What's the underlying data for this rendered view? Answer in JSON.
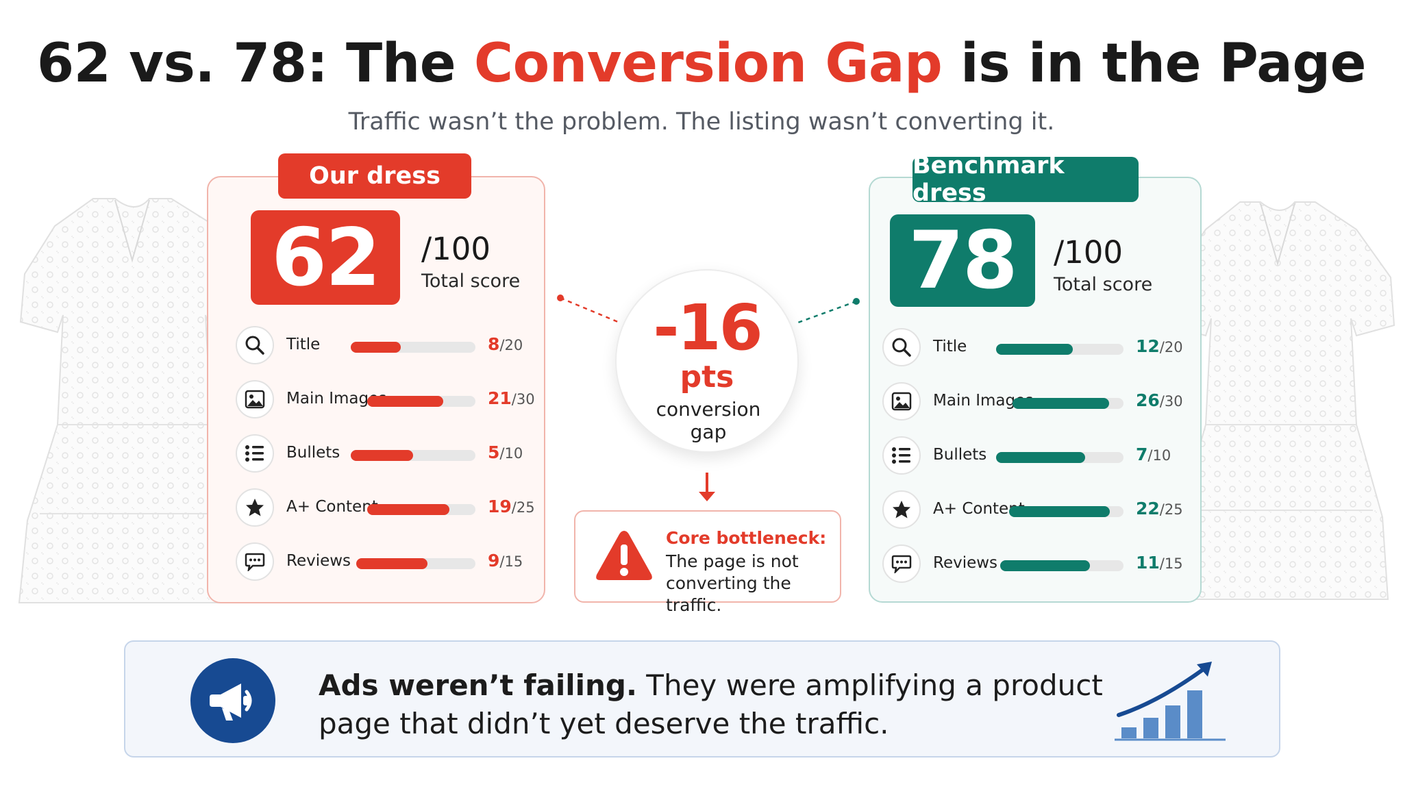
{
  "headline": {
    "prefix": "62 vs. 78: The ",
    "accent": "Conversion Gap",
    "suffix": " is in the Page"
  },
  "subtitle": "Traffic wasn’t the problem. The listing wasn’t converting it.",
  "ours": {
    "tag": "Our dress",
    "score": "62",
    "out_of": "/100",
    "total_label": "Total score",
    "color": "#e33b2a",
    "metrics": [
      {
        "label": "Title",
        "score": "8",
        "max": "/20",
        "fraction": 0.4,
        "icon": "search-icon"
      },
      {
        "label": "Main Images",
        "score": "21",
        "max": "/30",
        "fraction": 0.7,
        "icon": "image-icon"
      },
      {
        "label": "Bullets",
        "score": "5",
        "max": "/10",
        "fraction": 0.5,
        "icon": "list-icon"
      },
      {
        "label": "A+ Content",
        "score": "19",
        "max": "/25",
        "fraction": 0.76,
        "icon": "star-icon"
      },
      {
        "label": "Reviews",
        "score": "9",
        "max": "/15",
        "fraction": 0.6,
        "icon": "chat-icon"
      }
    ]
  },
  "benchmark": {
    "tag": "Benchmark dress",
    "score": "78",
    "out_of": "/100",
    "total_label": "Total score",
    "color": "#0f7c6b",
    "metrics": [
      {
        "label": "Title",
        "score": "12",
        "max": "/20",
        "fraction": 0.6,
        "icon": "search-icon"
      },
      {
        "label": "Main Images",
        "score": "26",
        "max": "/30",
        "fraction": 0.87,
        "icon": "image-icon"
      },
      {
        "label": "Bullets",
        "score": "7",
        "max": "/10",
        "fraction": 0.7,
        "icon": "list-icon"
      },
      {
        "label": "A+ Content",
        "score": "22",
        "max": "/25",
        "fraction": 0.88,
        "icon": "star-icon"
      },
      {
        "label": "Reviews",
        "score": "11",
        "max": "/15",
        "fraction": 0.73,
        "icon": "chat-icon"
      }
    ]
  },
  "gap": {
    "value": "-16",
    "unit": "pts",
    "caption": "conversion gap"
  },
  "bottleneck": {
    "title": "Core bottleneck:",
    "text": "The page is not converting the traffic."
  },
  "banner": {
    "strong": "Ads weren’t failing.",
    "text": " They were amplifying a product page that didn’t yet deserve the traffic."
  },
  "colors": {
    "accent_red": "#e33b2a",
    "accent_green": "#0f7c6b",
    "banner_blue": "#174a92"
  }
}
